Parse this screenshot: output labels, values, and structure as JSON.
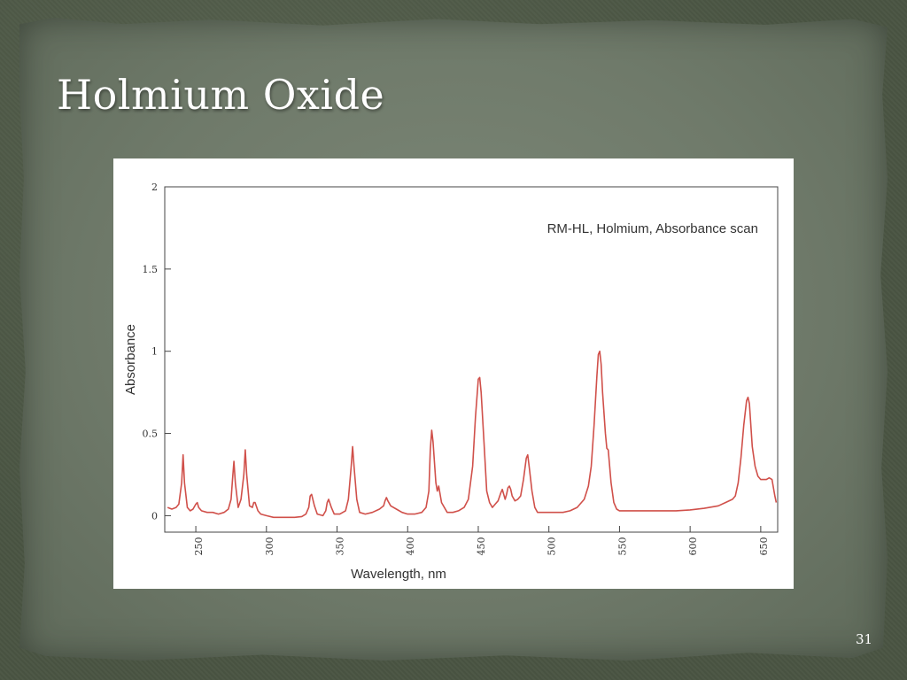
{
  "slide": {
    "title": "Holmium Oxide",
    "page_number": "31"
  },
  "chart_data": {
    "type": "line",
    "title": "RM-HL, Holmium, Absorbance scan",
    "xlabel": "Wavelength, nm",
    "ylabel": "Absorbance",
    "xlim": [
      228,
      662
    ],
    "ylim": [
      -0.1,
      2
    ],
    "x_ticks": [
      250,
      300,
      350,
      400,
      450,
      500,
      550,
      600,
      650
    ],
    "y_ticks": [
      0,
      0.5,
      1,
      1.5,
      2
    ],
    "y_tick_labels": [
      "0",
      "0.5",
      "1",
      "1.5",
      "2"
    ],
    "grid": false,
    "line_color": "#d0504a",
    "series": [
      {
        "x": [
          230,
          233,
          236,
          238,
          240,
          241,
          242,
          244,
          246,
          248,
          250,
          251,
          252,
          254,
          258,
          262,
          266,
          270,
          273,
          275,
          276,
          277,
          278,
          280,
          282,
          284,
          285,
          286,
          288,
          290,
          291,
          292,
          294,
          296,
          300,
          305,
          310,
          315,
          320,
          325,
          328,
          330,
          331,
          332,
          334,
          336,
          340,
          342,
          343,
          344,
          346,
          348,
          352,
          356,
          358,
          360,
          361,
          362,
          364,
          366,
          370,
          375,
          380,
          383,
          384,
          385,
          386,
          388,
          392,
          396,
          400,
          405,
          410,
          413,
          415,
          416,
          417,
          418,
          420,
          421,
          422,
          424,
          428,
          432,
          436,
          440,
          443,
          446,
          448,
          450,
          451,
          452,
          454,
          456,
          458,
          460,
          462,
          464,
          466,
          467,
          468,
          469,
          470,
          471,
          472,
          473,
          474,
          476,
          478,
          480,
          482,
          484,
          485,
          486,
          488,
          490,
          492,
          496,
          500,
          505,
          510,
          515,
          520,
          525,
          528,
          530,
          532,
          534,
          535,
          536,
          537,
          538,
          540,
          541,
          542,
          543,
          544,
          546,
          548,
          550,
          555,
          560,
          570,
          580,
          590,
          600,
          610,
          620,
          625,
          630,
          632,
          634,
          636,
          638,
          640,
          641,
          642,
          643,
          644,
          646,
          648,
          650,
          654,
          656,
          658,
          660,
          661
        ],
        "values": [
          0.05,
          0.04,
          0.05,
          0.07,
          0.2,
          0.37,
          0.2,
          0.05,
          0.03,
          0.04,
          0.07,
          0.08,
          0.05,
          0.03,
          0.02,
          0.02,
          0.01,
          0.02,
          0.04,
          0.1,
          0.22,
          0.33,
          0.2,
          0.05,
          0.1,
          0.25,
          0.4,
          0.25,
          0.06,
          0.05,
          0.08,
          0.08,
          0.03,
          0.01,
          0.0,
          -0.01,
          -0.01,
          -0.01,
          -0.01,
          -0.005,
          0.01,
          0.05,
          0.12,
          0.13,
          0.06,
          0.01,
          0.0,
          0.03,
          0.08,
          0.1,
          0.05,
          0.01,
          0.01,
          0.03,
          0.1,
          0.3,
          0.42,
          0.3,
          0.1,
          0.02,
          0.01,
          0.02,
          0.04,
          0.06,
          0.09,
          0.11,
          0.09,
          0.06,
          0.04,
          0.02,
          0.01,
          0.01,
          0.02,
          0.05,
          0.15,
          0.4,
          0.52,
          0.45,
          0.2,
          0.15,
          0.18,
          0.08,
          0.02,
          0.02,
          0.03,
          0.05,
          0.1,
          0.3,
          0.6,
          0.83,
          0.84,
          0.75,
          0.45,
          0.15,
          0.08,
          0.05,
          0.07,
          0.09,
          0.14,
          0.16,
          0.13,
          0.1,
          0.13,
          0.17,
          0.18,
          0.16,
          0.12,
          0.09,
          0.1,
          0.12,
          0.22,
          0.35,
          0.37,
          0.3,
          0.15,
          0.05,
          0.02,
          0.02,
          0.02,
          0.02,
          0.02,
          0.03,
          0.05,
          0.1,
          0.18,
          0.3,
          0.55,
          0.85,
          0.98,
          1.0,
          0.92,
          0.75,
          0.5,
          0.41,
          0.4,
          0.3,
          0.2,
          0.08,
          0.04,
          0.03,
          0.03,
          0.03,
          0.03,
          0.03,
          0.03,
          0.035,
          0.045,
          0.06,
          0.08,
          0.1,
          0.12,
          0.2,
          0.35,
          0.55,
          0.7,
          0.72,
          0.68,
          0.55,
          0.42,
          0.3,
          0.24,
          0.22,
          0.22,
          0.23,
          0.22,
          0.12,
          0.08
        ]
      }
    ]
  }
}
